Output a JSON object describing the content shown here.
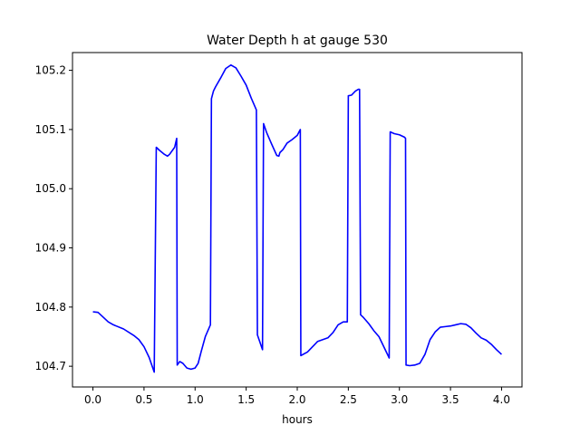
{
  "chart_data": {
    "type": "line",
    "title": "Water Depth h at gauge 530",
    "xlabel": "hours",
    "ylabel": "",
    "xlim": [
      -0.2,
      4.2
    ],
    "ylim": [
      104.665,
      105.23
    ],
    "x_ticks": [
      0.0,
      0.5,
      1.0,
      1.5,
      2.0,
      2.5,
      3.0,
      3.5,
      4.0
    ],
    "x_tick_labels": [
      "0.0",
      "0.5",
      "1.0",
      "1.5",
      "2.0",
      "2.5",
      "3.0",
      "3.5",
      "4.0"
    ],
    "y_ticks": [
      104.7,
      104.8,
      104.9,
      105.0,
      105.1,
      105.2
    ],
    "y_tick_labels": [
      "104.7",
      "104.8",
      "104.9",
      "105.0",
      "105.1",
      "105.2"
    ],
    "grid": false,
    "series": [
      {
        "color": "#0000ff",
        "points": [
          [
            0.0,
            104.792
          ],
          [
            0.05,
            104.791
          ],
          [
            0.1,
            104.783
          ],
          [
            0.15,
            104.775
          ],
          [
            0.2,
            104.77
          ],
          [
            0.3,
            104.763
          ],
          [
            0.4,
            104.752
          ],
          [
            0.45,
            104.745
          ],
          [
            0.5,
            104.733
          ],
          [
            0.55,
            104.715
          ],
          [
            0.6,
            104.69
          ],
          [
            0.62,
            105.07
          ],
          [
            0.65,
            105.065
          ],
          [
            0.7,
            105.058
          ],
          [
            0.73,
            105.055
          ],
          [
            0.75,
            105.058
          ],
          [
            0.8,
            105.07
          ],
          [
            0.82,
            105.085
          ],
          [
            0.825,
            104.702
          ],
          [
            0.85,
            104.708
          ],
          [
            0.88,
            104.705
          ],
          [
            0.92,
            104.697
          ],
          [
            0.96,
            104.695
          ],
          [
            1.0,
            104.697
          ],
          [
            1.03,
            104.705
          ],
          [
            1.06,
            104.725
          ],
          [
            1.1,
            104.75
          ],
          [
            1.15,
            104.77
          ],
          [
            1.16,
            105.152
          ],
          [
            1.18,
            105.165
          ],
          [
            1.2,
            105.172
          ],
          [
            1.25,
            105.187
          ],
          [
            1.3,
            105.203
          ],
          [
            1.35,
            105.209
          ],
          [
            1.4,
            105.204
          ],
          [
            1.45,
            105.19
          ],
          [
            1.5,
            105.175
          ],
          [
            1.55,
            105.153
          ],
          [
            1.6,
            105.133
          ],
          [
            1.61,
            104.753
          ],
          [
            1.66,
            104.728
          ],
          [
            1.67,
            105.11
          ],
          [
            1.7,
            105.095
          ],
          [
            1.75,
            105.075
          ],
          [
            1.8,
            105.056
          ],
          [
            1.82,
            105.055
          ],
          [
            1.83,
            105.061
          ],
          [
            1.86,
            105.066
          ],
          [
            1.9,
            105.077
          ],
          [
            1.95,
            105.083
          ],
          [
            2.0,
            105.09
          ],
          [
            2.03,
            105.1
          ],
          [
            2.035,
            104.718
          ],
          [
            2.1,
            104.724
          ],
          [
            2.15,
            104.733
          ],
          [
            2.2,
            104.742
          ],
          [
            2.25,
            104.745
          ],
          [
            2.3,
            104.748
          ],
          [
            2.35,
            104.757
          ],
          [
            2.4,
            104.77
          ],
          [
            2.45,
            104.775
          ],
          [
            2.49,
            104.775
          ],
          [
            2.5,
            105.157
          ],
          [
            2.53,
            105.158
          ],
          [
            2.57,
            105.165
          ],
          [
            2.6,
            105.168
          ],
          [
            2.61,
            105.168
          ],
          [
            2.62,
            104.787
          ],
          [
            2.65,
            104.782
          ],
          [
            2.7,
            104.772
          ],
          [
            2.75,
            104.76
          ],
          [
            2.8,
            104.75
          ],
          [
            2.85,
            104.732
          ],
          [
            2.9,
            104.714
          ],
          [
            2.91,
            105.096
          ],
          [
            2.95,
            105.093
          ],
          [
            3.0,
            105.091
          ],
          [
            3.05,
            105.087
          ],
          [
            3.06,
            105.085
          ],
          [
            3.065,
            104.702
          ],
          [
            3.1,
            104.701
          ],
          [
            3.15,
            104.702
          ],
          [
            3.2,
            104.705
          ],
          [
            3.25,
            104.72
          ],
          [
            3.3,
            104.745
          ],
          [
            3.35,
            104.758
          ],
          [
            3.4,
            104.766
          ],
          [
            3.45,
            104.767
          ],
          [
            3.5,
            104.768
          ],
          [
            3.55,
            104.77
          ],
          [
            3.6,
            104.772
          ],
          [
            3.65,
            104.771
          ],
          [
            3.7,
            104.765
          ],
          [
            3.75,
            104.756
          ],
          [
            3.8,
            104.748
          ],
          [
            3.85,
            104.744
          ],
          [
            3.9,
            104.737
          ],
          [
            3.95,
            104.728
          ],
          [
            4.0,
            104.72
          ]
        ]
      }
    ]
  }
}
